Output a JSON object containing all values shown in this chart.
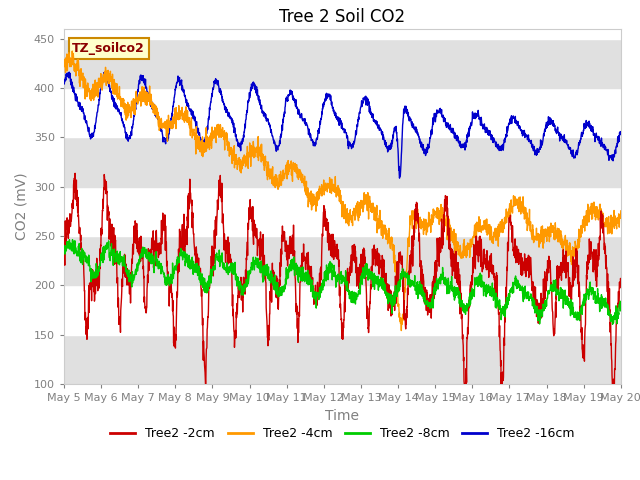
{
  "title": "Tree 2 Soil CO2",
  "xlabel": "Time",
  "ylabel": "CO2 (mV)",
  "ylim": [
    100,
    460
  ],
  "yticks": [
    100,
    150,
    200,
    250,
    300,
    350,
    400,
    450
  ],
  "x_tick_labels": [
    "May 5",
    "May 6",
    "May 7",
    "May 8",
    "May 9",
    "May 10",
    "May 11",
    "May 12",
    "May 13",
    "May 14",
    "May 15",
    "May 16",
    "May 17",
    "May 18",
    "May 19",
    "May 20"
  ],
  "annotation_label": "TZ_soilco2",
  "legend_labels": [
    "Tree2 -2cm",
    "Tree2 -4cm",
    "Tree2 -8cm",
    "Tree2 -16cm"
  ],
  "colors": [
    "#cc0000",
    "#ff9900",
    "#00cc00",
    "#0000cc"
  ],
  "bg_band_color": "#e0e0e0",
  "title_fontsize": 12,
  "axis_label_fontsize": 10,
  "tick_fontsize": 8,
  "legend_fontsize": 9
}
